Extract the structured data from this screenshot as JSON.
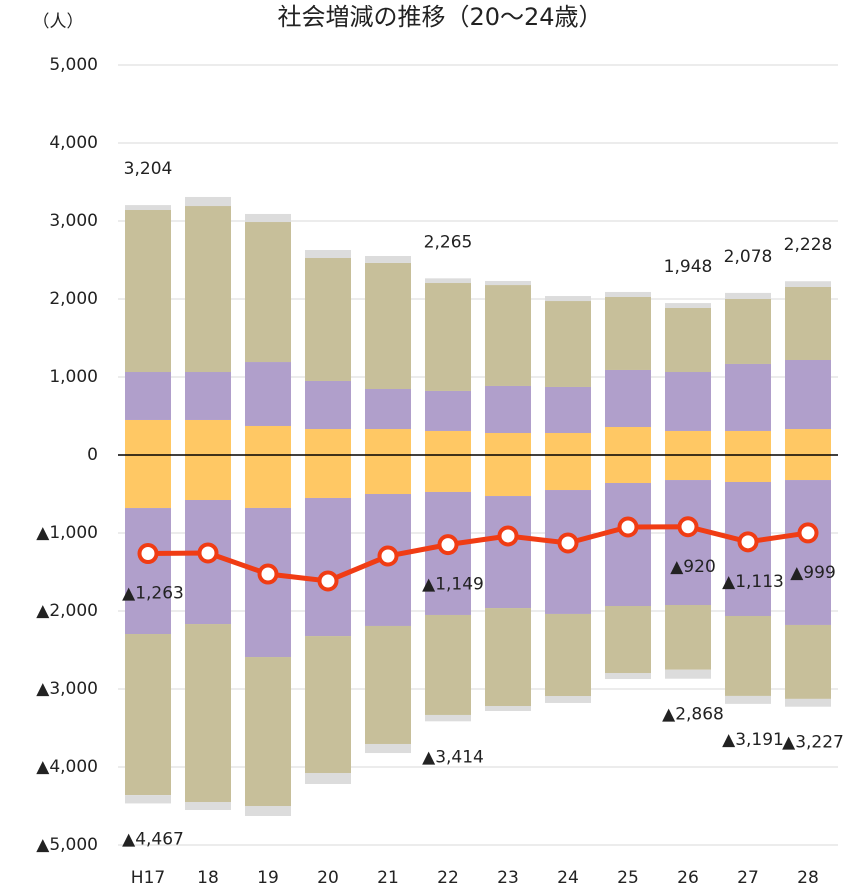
{
  "chart_data": {
    "type": "bar",
    "title": "社会増減の推移（20〜24歳）",
    "y_unit": "（人）",
    "categories": [
      "H17",
      "18",
      "19",
      "20",
      "21",
      "22",
      "23",
      "24",
      "25",
      "26",
      "27",
      "28"
    ],
    "series": [
      {
        "color": "#ffc864",
        "values": [
          449,
          449,
          372,
          333,
          333,
          308,
          282,
          282,
          359,
          308,
          308,
          333
        ]
      },
      {
        "color": "#b09fcb",
        "values": [
          615,
          615,
          820,
          616,
          513,
          513,
          603,
          590,
          731,
          756,
          859,
          885
        ]
      },
      {
        "color": "#c7bf9a",
        "values": [
          2077,
          2128,
          1795,
          1577,
          1616,
          1384,
          1294,
          1102,
          936,
          821,
          833,
          936
        ]
      },
      {
        "color": "#dcdcdc",
        "values": [
          63,
          116,
          103,
          102,
          89,
          60,
          52,
          64,
          64,
          63,
          78,
          74
        ]
      },
      {
        "color": "#ffc864",
        "values": [
          -680,
          -577,
          -679,
          -551,
          -500,
          -474,
          -526,
          -449,
          -359,
          -321,
          -346,
          -321
        ]
      },
      {
        "color": "#b09fcb",
        "values": [
          -1615,
          -1590,
          -1911,
          -1770,
          -1692,
          -1577,
          -1436,
          -1589,
          -1577,
          -1602,
          -1718,
          -1858
        ]
      },
      {
        "color": "#c7bf9a",
        "values": [
          -2065,
          -2282,
          -1910,
          -1756,
          -1513,
          -1282,
          -1256,
          -1052,
          -859,
          -830,
          -1025,
          -948
        ]
      },
      {
        "color": "#dcdcdc",
        "values": [
          -107,
          -102,
          -128,
          -141,
          -116,
          -81,
          -64,
          -89,
          -77,
          -115,
          -102,
          -100
        ]
      }
    ],
    "line": {
      "color": "#f03c14",
      "values": [
        -1263,
        -1256,
        -1526,
        -1615,
        -1295,
        -1149,
        -1038,
        -1128,
        -923,
        -920,
        -1113,
        -999
      ],
      "value_labels": [
        "▲1,263",
        null,
        null,
        null,
        null,
        "▲1,149",
        null,
        null,
        null,
        "▲920",
        "▲1,113",
        "▲999"
      ]
    },
    "annotations": [
      {
        "text": "3,204",
        "x": "H17",
        "y": 3204
      },
      {
        "text": "2,265",
        "x": "22",
        "y": 2265
      },
      {
        "text": "1,948",
        "x": "26",
        "y": 1948
      },
      {
        "text": "2,078",
        "x": "27",
        "y": 2078
      },
      {
        "text": "2,228",
        "x": "28",
        "y": 2228
      },
      {
        "text": "▲4,467",
        "x": "H17",
        "y": -4467
      },
      {
        "text": "▲3,414",
        "x": "22",
        "y": -3414
      },
      {
        "text": "▲2,868",
        "x": "26",
        "y": -2868
      },
      {
        "text": "▲3,191",
        "x": "27",
        "y": -3191
      },
      {
        "text": "▲3,227",
        "x": "28",
        "y": -3227
      }
    ],
    "ylim": [
      -5000,
      5000
    ],
    "yticks": [
      {
        "value": 5000,
        "label": "5,000"
      },
      {
        "value": 4000,
        "label": "4,000"
      },
      {
        "value": 3000,
        "label": "3,000"
      },
      {
        "value": 2000,
        "label": "2,000"
      },
      {
        "value": 1000,
        "label": "1,000"
      },
      0,
      {
        "value": -1000,
        "label": "▲1,000"
      },
      {
        "value": -2000,
        "label": "▲2,000"
      },
      {
        "value": -3000,
        "label": "▲3,000"
      },
      {
        "value": -4000,
        "label": "▲4,000"
      },
      {
        "value": -5000,
        "label": "▲5,000"
      }
    ],
    "grid": true
  }
}
